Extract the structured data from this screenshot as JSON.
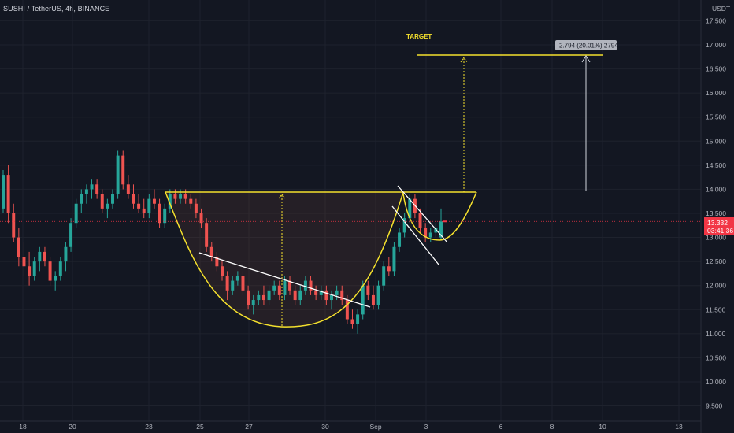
{
  "header": {
    "title": "SUSHI / TetherUS, 4h, BINANCE",
    "currency": "USDT"
  },
  "colors": {
    "background": "#131722",
    "up": "#26a69a",
    "down": "#ef5350",
    "pattern": "#f5e12d",
    "grid": "#1e222d",
    "white": "#ffffff",
    "price_tag": "#f23645"
  },
  "chart_data": {
    "type": "candlestick",
    "y_ticks": [
      "17.500",
      "17.000",
      "16.500",
      "16.000",
      "15.500",
      "15.000",
      "14.500",
      "14.000",
      "13.500",
      "13.000",
      "12.500",
      "12.000",
      "11.500",
      "11.000",
      "10.500",
      "10.000",
      "9.500"
    ],
    "x_ticks": [
      "18",
      "20",
      "23",
      "25",
      "27",
      "30",
      "Sep",
      "3",
      "6",
      "8",
      "10",
      "13"
    ],
    "ylim": [
      9.35,
      17.65
    ],
    "last_price": "13.332",
    "countdown": "03:41:36",
    "target_label": "TARGET",
    "measure_label": "2.794 (20.01%) 2794",
    "candles": [
      [
        13.6,
        14.4,
        13.5,
        14.3
      ],
      [
        14.3,
        14.5,
        13.3,
        13.5
      ],
      [
        13.5,
        13.7,
        12.9,
        13.0
      ],
      [
        13.0,
        13.2,
        12.4,
        12.6
      ],
      [
        12.6,
        12.9,
        12.2,
        12.4
      ],
      [
        12.4,
        12.7,
        12.0,
        12.2
      ],
      [
        12.2,
        12.6,
        12.1,
        12.5
      ],
      [
        12.5,
        12.8,
        12.3,
        12.7
      ],
      [
        12.7,
        12.8,
        12.4,
        12.5
      ],
      [
        12.5,
        12.6,
        12.0,
        12.1
      ],
      [
        12.1,
        12.3,
        11.9,
        12.2
      ],
      [
        12.2,
        12.6,
        12.1,
        12.5
      ],
      [
        12.5,
        12.9,
        12.3,
        12.8
      ],
      [
        12.8,
        13.4,
        12.7,
        13.3
      ],
      [
        13.3,
        13.8,
        13.2,
        13.7
      ],
      [
        13.7,
        14.0,
        13.5,
        13.9
      ],
      [
        13.9,
        14.1,
        13.7,
        14.0
      ],
      [
        14.0,
        14.2,
        13.8,
        14.1
      ],
      [
        14.1,
        14.2,
        13.8,
        13.9
      ],
      [
        13.9,
        14.0,
        13.5,
        13.6
      ],
      [
        13.6,
        13.8,
        13.4,
        13.7
      ],
      [
        13.7,
        14.0,
        13.6,
        13.9
      ],
      [
        13.9,
        14.8,
        13.8,
        14.7
      ],
      [
        14.7,
        14.8,
        14.0,
        14.1
      ],
      [
        14.1,
        14.3,
        13.8,
        13.9
      ],
      [
        13.9,
        14.1,
        13.6,
        13.7
      ],
      [
        13.7,
        13.9,
        13.5,
        13.6
      ],
      [
        13.6,
        13.8,
        13.4,
        13.5
      ],
      [
        13.5,
        13.9,
        13.4,
        13.8
      ],
      [
        13.8,
        14.0,
        13.6,
        13.7
      ],
      [
        13.7,
        13.8,
        13.2,
        13.3
      ],
      [
        13.3,
        13.7,
        13.2,
        13.6
      ],
      [
        13.6,
        14.0,
        13.5,
        13.9
      ],
      [
        13.9,
        14.0,
        13.7,
        13.8
      ],
      [
        13.8,
        14.0,
        13.7,
        13.9
      ],
      [
        13.9,
        14.0,
        13.7,
        13.8
      ],
      [
        13.8,
        13.9,
        13.6,
        13.7
      ],
      [
        13.7,
        13.8,
        13.4,
        13.5
      ],
      [
        13.5,
        13.6,
        13.2,
        13.3
      ],
      [
        13.3,
        13.4,
        12.7,
        12.8
      ],
      [
        12.8,
        12.9,
        12.5,
        12.6
      ],
      [
        12.6,
        12.7,
        12.3,
        12.4
      ],
      [
        12.4,
        12.5,
        12.1,
        12.2
      ],
      [
        12.2,
        12.3,
        11.7,
        11.9
      ],
      [
        11.9,
        12.2,
        11.8,
        12.1
      ],
      [
        12.1,
        12.3,
        12.0,
        12.2
      ],
      [
        12.2,
        12.3,
        11.8,
        11.9
      ],
      [
        11.9,
        12.0,
        11.5,
        11.6
      ],
      [
        11.6,
        11.8,
        11.4,
        11.7
      ],
      [
        11.7,
        11.9,
        11.6,
        11.8
      ],
      [
        11.8,
        12.0,
        11.6,
        11.7
      ],
      [
        11.7,
        12.0,
        11.6,
        11.9
      ],
      [
        11.9,
        12.1,
        11.8,
        12.0
      ],
      [
        12.0,
        12.1,
        11.7,
        11.8
      ],
      [
        11.8,
        12.2,
        11.7,
        12.1
      ],
      [
        12.1,
        12.2,
        11.8,
        11.9
      ],
      [
        11.9,
        12.0,
        11.6,
        11.7
      ],
      [
        11.7,
        12.0,
        11.6,
        11.9
      ],
      [
        11.9,
        12.2,
        11.8,
        12.1
      ],
      [
        12.1,
        12.2,
        11.8,
        11.9
      ],
      [
        11.9,
        12.0,
        11.7,
        11.8
      ],
      [
        11.8,
        12.0,
        11.7,
        11.9
      ],
      [
        11.9,
        12.0,
        11.6,
        11.7
      ],
      [
        11.7,
        11.9,
        11.5,
        11.8
      ],
      [
        11.8,
        12.0,
        11.7,
        11.9
      ],
      [
        11.9,
        12.0,
        11.6,
        11.7
      ],
      [
        11.7,
        11.8,
        11.2,
        11.3
      ],
      [
        11.3,
        11.5,
        11.1,
        11.2
      ],
      [
        11.2,
        11.5,
        11.0,
        11.4
      ],
      [
        11.4,
        12.1,
        11.3,
        12.0
      ],
      [
        12.0,
        12.1,
        11.7,
        11.8
      ],
      [
        11.8,
        12.0,
        11.5,
        11.6
      ],
      [
        11.6,
        12.1,
        11.5,
        12.0
      ],
      [
        12.0,
        12.5,
        11.9,
        12.4
      ],
      [
        12.4,
        12.6,
        12.2,
        12.3
      ],
      [
        12.3,
        12.9,
        12.2,
        12.8
      ],
      [
        12.8,
        13.2,
        12.7,
        13.1
      ],
      [
        13.1,
        13.5,
        13.0,
        13.4
      ],
      [
        13.4,
        13.9,
        13.3,
        13.8
      ],
      [
        13.8,
        13.9,
        13.4,
        13.5
      ],
      [
        13.5,
        13.6,
        13.1,
        13.2
      ],
      [
        13.2,
        13.3,
        12.9,
        13.0
      ],
      [
        13.0,
        13.2,
        12.9,
        13.1
      ],
      [
        13.1,
        13.3,
        13.0,
        13.2
      ],
      [
        13.0,
        13.6,
        12.95,
        13.33
      ]
    ]
  }
}
